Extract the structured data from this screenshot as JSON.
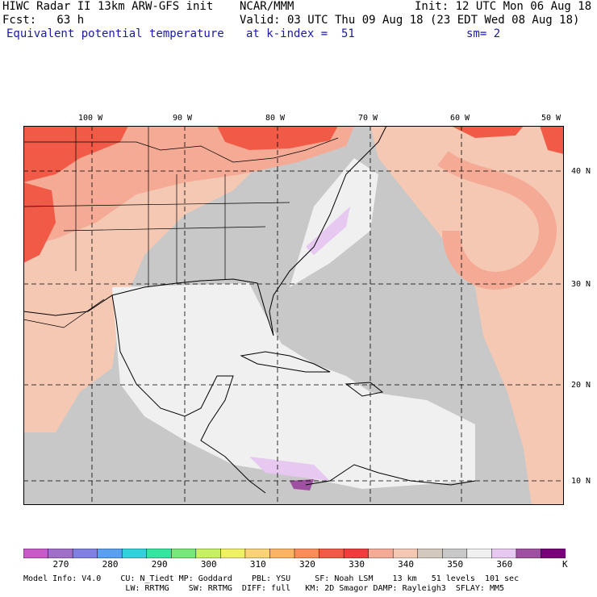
{
  "header": {
    "title_left": "HIWC Radar II 13km ARW-GFS init",
    "org": "NCAR/MMM",
    "init": "Init: 12 UTC Mon 06 Aug 18",
    "fcst": "Fcst:   63 h",
    "valid": "Valid: 03 UTC Thu 09 Aug 18 (23 EDT Wed 08 Aug 18)",
    "field": "Equivalent potential temperature",
    "level": "at k-index =  51",
    "smooth": "sm= 2"
  },
  "map": {
    "lon_labels": [
      "100 W",
      "90 W",
      "80 W",
      "70 W",
      "60 W",
      "50 W"
    ],
    "lat_labels": [
      "40 N",
      "30 N",
      "20 N",
      "10 N"
    ]
  },
  "colorbar": {
    "labels": [
      "270",
      "280",
      "290",
      "300",
      "310",
      "320",
      "330",
      "340",
      "350",
      "360"
    ],
    "unit": "K",
    "colors": [
      "#c85ac8",
      "#a070c8",
      "#8080e0",
      "#5aa0f0",
      "#32d2dc",
      "#32e6a0",
      "#78e678",
      "#c8f064",
      "#f0f064",
      "#fad278",
      "#fab464",
      "#fa8c5a",
      "#f05a46",
      "#f03c3c",
      "#f5aa96",
      "#f5c8b4",
      "#d2c8be",
      "#c8c8c8",
      "#f0f0f0",
      "#e6c8f0",
      "#a050a0",
      "#780078"
    ]
  },
  "footer": {
    "line1": "Model Info: V4.0    CU: N_Tiedt MP: Goddard    PBL: YSU     SF: Noah LSM    13 km   51 levels  101 sec",
    "line2": "                     LW: RRTMG    SW: RRTMG  DIFF: full   KM: 2D Smagor DAMP: Rayleigh3  SFLAY: MM5"
  }
}
